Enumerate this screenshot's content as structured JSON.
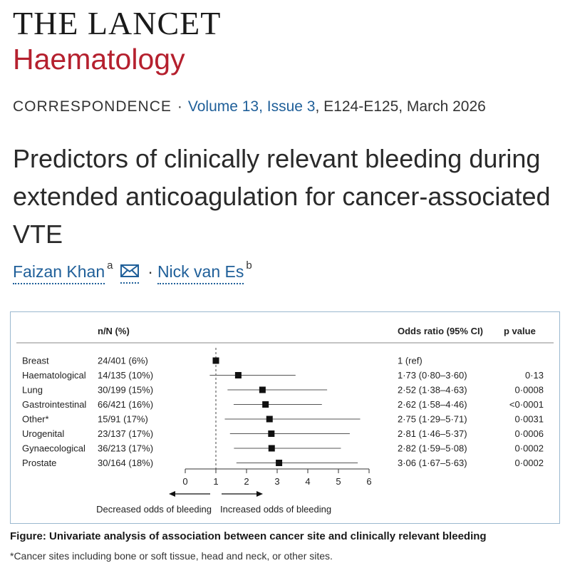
{
  "journal": {
    "name": "THE LANCET",
    "subtitle": "Haematology"
  },
  "meta": {
    "type": "CORRESPONDENCE",
    "separator": "·",
    "volume_issue": "Volume 13, Issue 3",
    "pages_date": ", E124-E125, March 2026"
  },
  "article": {
    "title": "Predictors of clinically relevant bleeding during extended anticoagulation for cancer-associated VTE"
  },
  "authors": [
    {
      "name": "Faizan Khan",
      "affiliation": "a",
      "has_email_icon": true
    },
    {
      "name": "Nick van Es",
      "affiliation": "b"
    }
  ],
  "author_separator": "·",
  "figure": {
    "caption": "Figure: Univariate analysis of association between cancer site and clinically relevant bleeding",
    "footnote": "*Cancer sites including bone or soft tissue, head and neck, or other sites."
  },
  "chart_data": {
    "type": "forest",
    "columns": {
      "n": "n/N (%)",
      "or": "Odds ratio (95% CI)",
      "p": "p value"
    },
    "rows": [
      {
        "site": "Breast",
        "n": "24/401 (6%)",
        "or": 1.0,
        "lo": 1.0,
        "hi": 1.0,
        "or_text": "1 (ref)",
        "p": ""
      },
      {
        "site": "Haematological",
        "n": "14/135 (10%)",
        "or": 1.73,
        "lo": 0.8,
        "hi": 3.6,
        "or_text": "1·73 (0·80–3·60)",
        "p": "0·13"
      },
      {
        "site": "Lung",
        "n": "30/199 (15%)",
        "or": 2.52,
        "lo": 1.38,
        "hi": 4.63,
        "or_text": "2·52 (1·38–4·63)",
        "p": "0·0008"
      },
      {
        "site": "Gastrointestinal",
        "n": "66/421 (16%)",
        "or": 2.62,
        "lo": 1.58,
        "hi": 4.46,
        "or_text": "2·62 (1·58–4·46)",
        "p": "<0·0001"
      },
      {
        "site": "Other*",
        "n": "15/91 (17%)",
        "or": 2.75,
        "lo": 1.29,
        "hi": 5.71,
        "or_text": "2·75 (1·29–5·71)",
        "p": "0·0031"
      },
      {
        "site": "Urogenital",
        "n": "23/137 (17%)",
        "or": 2.81,
        "lo": 1.46,
        "hi": 5.37,
        "or_text": "2·81 (1·46–5·37)",
        "p": "0·0006"
      },
      {
        "site": "Gynaecological",
        "n": "36/213 (17%)",
        "or": 2.82,
        "lo": 1.59,
        "hi": 5.08,
        "or_text": "2·82 (1·59–5·08)",
        "p": "0·0002"
      },
      {
        "site": "Prostate",
        "n": "30/164 (18%)",
        "or": 3.06,
        "lo": 1.67,
        "hi": 5.63,
        "or_text": "3·06 (1·67–5·63)",
        "p": "0·0002"
      }
    ],
    "xlim": [
      0,
      6
    ],
    "ticks": [
      0,
      1,
      2,
      3,
      4,
      5,
      6
    ],
    "reference_line": 1,
    "left_arrow_label": "Decreased odds of bleeding",
    "right_arrow_label": "Increased odds of bleeding"
  }
}
